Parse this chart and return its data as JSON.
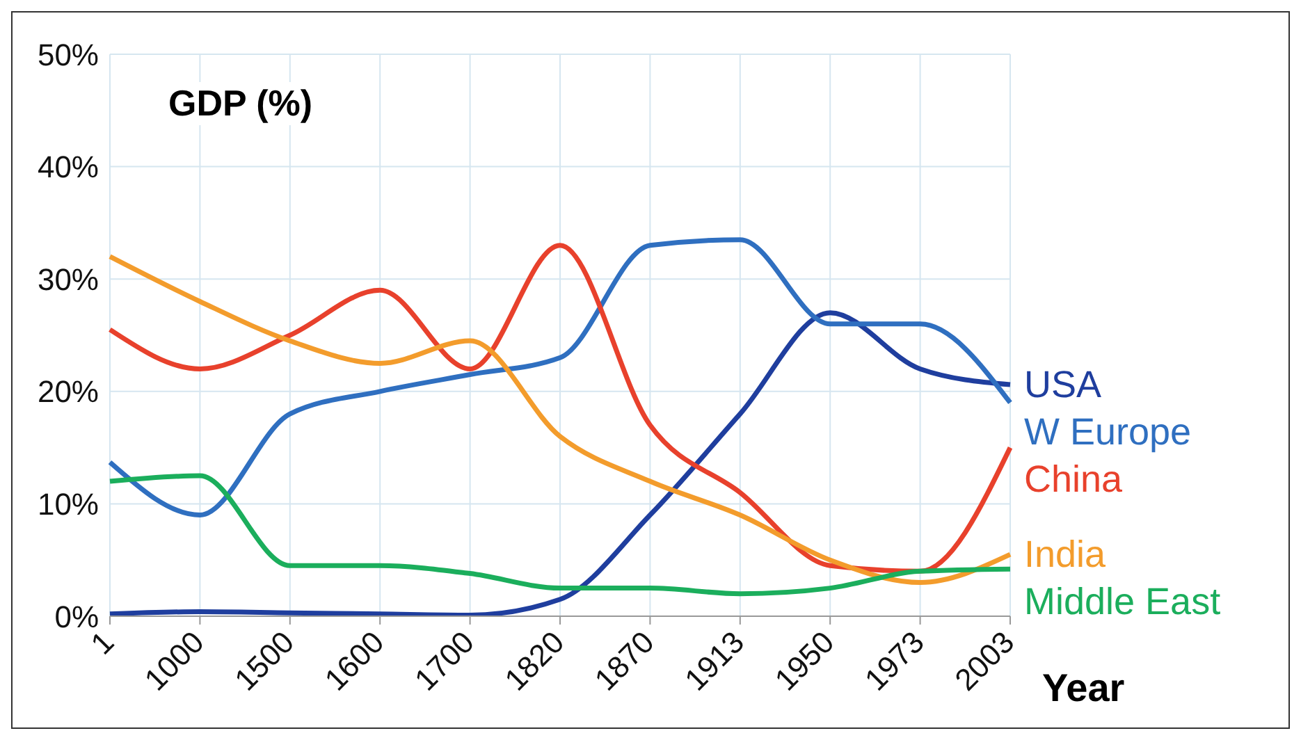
{
  "chart_data": {
    "type": "line",
    "ylabel": "GDP (%)",
    "xlabel": "Year",
    "categories": [
      "1",
      "1000",
      "1500",
      "1600",
      "1700",
      "1820",
      "1870",
      "1913",
      "1950",
      "1973",
      "2003"
    ],
    "series": [
      {
        "name": "USA",
        "color": "#1f3e9e",
        "values": [
          0.2,
          0.4,
          0.3,
          0.2,
          0.1,
          1.5,
          9,
          18,
          27,
          22,
          20.6
        ]
      },
      {
        "name": "W Europe",
        "color": "#2f6fc0",
        "values": [
          13.7,
          9,
          18,
          20,
          21.5,
          23,
          33,
          33.5,
          26,
          26,
          19
        ]
      },
      {
        "name": "China",
        "color": "#e8412c",
        "values": [
          25.5,
          22,
          25,
          29,
          22,
          33,
          17,
          11,
          4.5,
          4,
          15
        ]
      },
      {
        "name": "India",
        "color": "#f39c2c",
        "values": [
          32,
          28,
          24.5,
          22.5,
          24.5,
          16,
          12,
          9,
          5,
          3,
          5.5
        ]
      },
      {
        "name": "Middle East",
        "color": "#1bae5c",
        "values": [
          12,
          12.5,
          4.5,
          4.5,
          3.8,
          2.5,
          2.5,
          2,
          2.5,
          4,
          4.2
        ]
      }
    ],
    "ylim": [
      0,
      50
    ],
    "yticks": [
      {
        "value": 0,
        "label": "0%"
      },
      {
        "value": 10,
        "label": "10%"
      },
      {
        "value": 20,
        "label": "20%"
      },
      {
        "value": 30,
        "label": "30%"
      },
      {
        "value": 40,
        "label": "40%"
      },
      {
        "value": 50,
        "label": "50%"
      }
    ],
    "grid": true,
    "legend": false
  }
}
